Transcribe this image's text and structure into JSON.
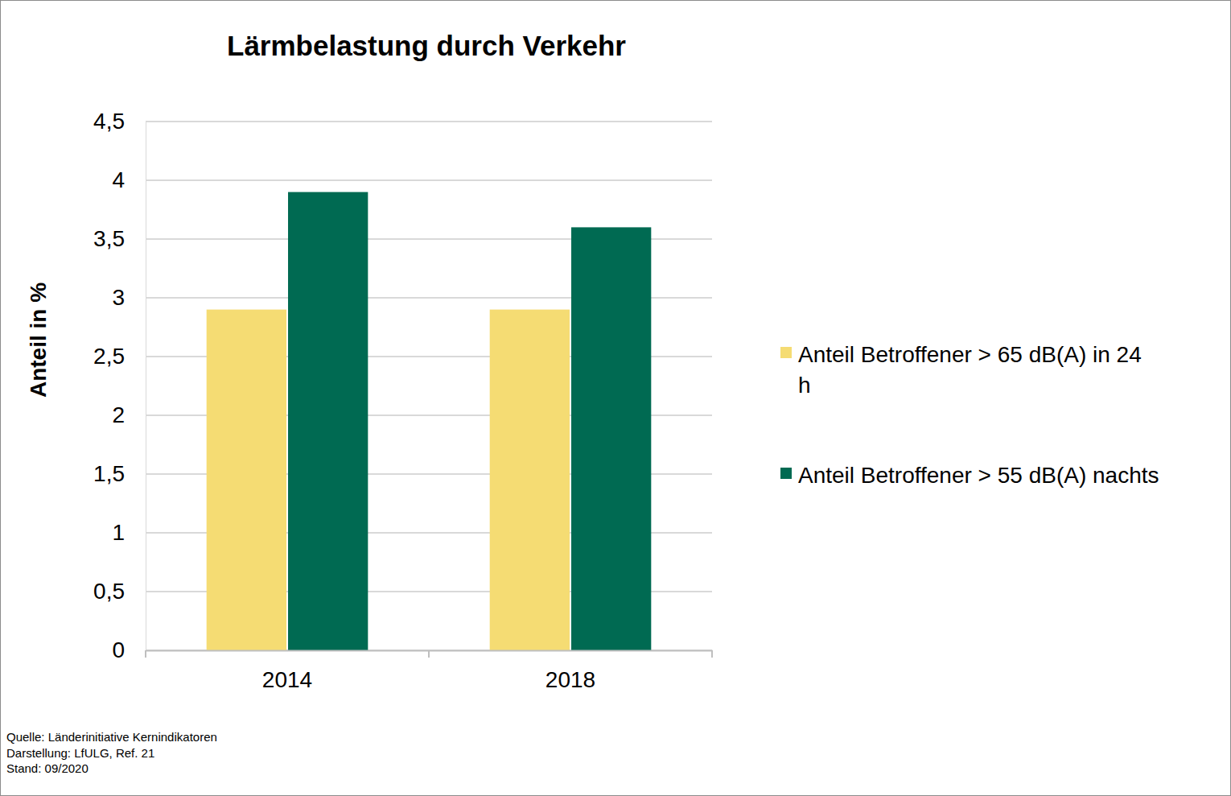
{
  "chart_data": {
    "type": "bar",
    "title": "Lärmbelastung durch Verkehr",
    "y_label": "Anteil in %",
    "categories": [
      "2014",
      "2018"
    ],
    "series": [
      {
        "name": "Anteil Betroffener > 65 dB(A) in 24 h",
        "color": "#f5dc73",
        "values": [
          2.9,
          2.9
        ]
      },
      {
        "name": "Anteil Betroffener > 55 dB(A) nachts",
        "color": "#006a52",
        "values": [
          3.9,
          3.6
        ]
      }
    ],
    "ylim": [
      0,
      4.5
    ],
    "yticks": [
      0,
      {
        "value": 0.5,
        "label": "0,5"
      },
      1,
      {
        "value": 1.5,
        "label": "1,5"
      },
      2,
      {
        "value": 2.5,
        "label": "2,5"
      },
      3,
      {
        "value": 3.5,
        "label": "3,5"
      },
      4,
      {
        "value": 4.5,
        "label": "4,5"
      }
    ],
    "grid": true,
    "legend": "right",
    "annotations": [
      "Quelle: Länderinitiative Kernindikatoren",
      "Darstellung: LfULG, Ref. 21",
      "Stand: 09/2020"
    ]
  }
}
